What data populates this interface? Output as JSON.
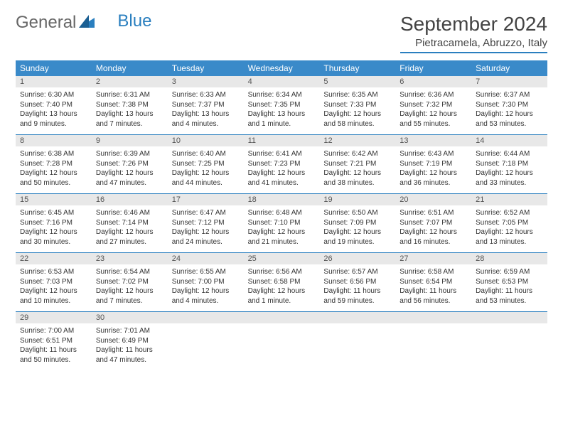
{
  "logo": {
    "part1": "General",
    "part2": "Blue"
  },
  "title": "September 2024",
  "location": "Pietracamela, Abruzzo, Italy",
  "colors": {
    "header_bg": "#3a8ac9",
    "accent": "#2a7fbf",
    "daynum_bg": "#e8e8e8",
    "text": "#333333"
  },
  "weekdays": [
    "Sunday",
    "Monday",
    "Tuesday",
    "Wednesday",
    "Thursday",
    "Friday",
    "Saturday"
  ],
  "days": [
    {
      "n": "1",
      "sr": "Sunrise: 6:30 AM",
      "ss": "Sunset: 7:40 PM",
      "dl": "Daylight: 13 hours and 9 minutes."
    },
    {
      "n": "2",
      "sr": "Sunrise: 6:31 AM",
      "ss": "Sunset: 7:38 PM",
      "dl": "Daylight: 13 hours and 7 minutes."
    },
    {
      "n": "3",
      "sr": "Sunrise: 6:33 AM",
      "ss": "Sunset: 7:37 PM",
      "dl": "Daylight: 13 hours and 4 minutes."
    },
    {
      "n": "4",
      "sr": "Sunrise: 6:34 AM",
      "ss": "Sunset: 7:35 PM",
      "dl": "Daylight: 13 hours and 1 minute."
    },
    {
      "n": "5",
      "sr": "Sunrise: 6:35 AM",
      "ss": "Sunset: 7:33 PM",
      "dl": "Daylight: 12 hours and 58 minutes."
    },
    {
      "n": "6",
      "sr": "Sunrise: 6:36 AM",
      "ss": "Sunset: 7:32 PM",
      "dl": "Daylight: 12 hours and 55 minutes."
    },
    {
      "n": "7",
      "sr": "Sunrise: 6:37 AM",
      "ss": "Sunset: 7:30 PM",
      "dl": "Daylight: 12 hours and 53 minutes."
    },
    {
      "n": "8",
      "sr": "Sunrise: 6:38 AM",
      "ss": "Sunset: 7:28 PM",
      "dl": "Daylight: 12 hours and 50 minutes."
    },
    {
      "n": "9",
      "sr": "Sunrise: 6:39 AM",
      "ss": "Sunset: 7:26 PM",
      "dl": "Daylight: 12 hours and 47 minutes."
    },
    {
      "n": "10",
      "sr": "Sunrise: 6:40 AM",
      "ss": "Sunset: 7:25 PM",
      "dl": "Daylight: 12 hours and 44 minutes."
    },
    {
      "n": "11",
      "sr": "Sunrise: 6:41 AM",
      "ss": "Sunset: 7:23 PM",
      "dl": "Daylight: 12 hours and 41 minutes."
    },
    {
      "n": "12",
      "sr": "Sunrise: 6:42 AM",
      "ss": "Sunset: 7:21 PM",
      "dl": "Daylight: 12 hours and 38 minutes."
    },
    {
      "n": "13",
      "sr": "Sunrise: 6:43 AM",
      "ss": "Sunset: 7:19 PM",
      "dl": "Daylight: 12 hours and 36 minutes."
    },
    {
      "n": "14",
      "sr": "Sunrise: 6:44 AM",
      "ss": "Sunset: 7:18 PM",
      "dl": "Daylight: 12 hours and 33 minutes."
    },
    {
      "n": "15",
      "sr": "Sunrise: 6:45 AM",
      "ss": "Sunset: 7:16 PM",
      "dl": "Daylight: 12 hours and 30 minutes."
    },
    {
      "n": "16",
      "sr": "Sunrise: 6:46 AM",
      "ss": "Sunset: 7:14 PM",
      "dl": "Daylight: 12 hours and 27 minutes."
    },
    {
      "n": "17",
      "sr": "Sunrise: 6:47 AM",
      "ss": "Sunset: 7:12 PM",
      "dl": "Daylight: 12 hours and 24 minutes."
    },
    {
      "n": "18",
      "sr": "Sunrise: 6:48 AM",
      "ss": "Sunset: 7:10 PM",
      "dl": "Daylight: 12 hours and 21 minutes."
    },
    {
      "n": "19",
      "sr": "Sunrise: 6:50 AM",
      "ss": "Sunset: 7:09 PM",
      "dl": "Daylight: 12 hours and 19 minutes."
    },
    {
      "n": "20",
      "sr": "Sunrise: 6:51 AM",
      "ss": "Sunset: 7:07 PM",
      "dl": "Daylight: 12 hours and 16 minutes."
    },
    {
      "n": "21",
      "sr": "Sunrise: 6:52 AM",
      "ss": "Sunset: 7:05 PM",
      "dl": "Daylight: 12 hours and 13 minutes."
    },
    {
      "n": "22",
      "sr": "Sunrise: 6:53 AM",
      "ss": "Sunset: 7:03 PM",
      "dl": "Daylight: 12 hours and 10 minutes."
    },
    {
      "n": "23",
      "sr": "Sunrise: 6:54 AM",
      "ss": "Sunset: 7:02 PM",
      "dl": "Daylight: 12 hours and 7 minutes."
    },
    {
      "n": "24",
      "sr": "Sunrise: 6:55 AM",
      "ss": "Sunset: 7:00 PM",
      "dl": "Daylight: 12 hours and 4 minutes."
    },
    {
      "n": "25",
      "sr": "Sunrise: 6:56 AM",
      "ss": "Sunset: 6:58 PM",
      "dl": "Daylight: 12 hours and 1 minute."
    },
    {
      "n": "26",
      "sr": "Sunrise: 6:57 AM",
      "ss": "Sunset: 6:56 PM",
      "dl": "Daylight: 11 hours and 59 minutes."
    },
    {
      "n": "27",
      "sr": "Sunrise: 6:58 AM",
      "ss": "Sunset: 6:54 PM",
      "dl": "Daylight: 11 hours and 56 minutes."
    },
    {
      "n": "28",
      "sr": "Sunrise: 6:59 AM",
      "ss": "Sunset: 6:53 PM",
      "dl": "Daylight: 11 hours and 53 minutes."
    },
    {
      "n": "29",
      "sr": "Sunrise: 7:00 AM",
      "ss": "Sunset: 6:51 PM",
      "dl": "Daylight: 11 hours and 50 minutes."
    },
    {
      "n": "30",
      "sr": "Sunrise: 7:01 AM",
      "ss": "Sunset: 6:49 PM",
      "dl": "Daylight: 11 hours and 47 minutes."
    }
  ]
}
